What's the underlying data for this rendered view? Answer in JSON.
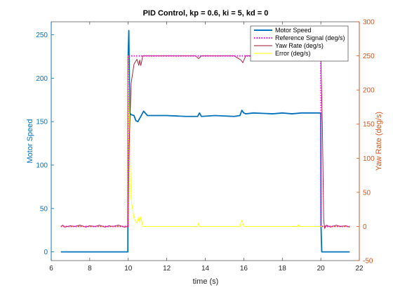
{
  "chart_data": {
    "type": "line",
    "title": "PID Control, kp = 0.6, ki = 5, kd = 0",
    "xlabel": "time (s)",
    "ylabel_left": "Motor Speed",
    "ylabel_right": "Yaw Rate (deg/s)",
    "xlim": [
      6,
      22
    ],
    "ylim_left": [
      -10,
      265
    ],
    "ylim_right": [
      -50,
      300
    ],
    "x_ticks": [
      6,
      8,
      10,
      12,
      14,
      16,
      18,
      20,
      22
    ],
    "y_ticks_left": [
      0,
      50,
      100,
      150,
      200,
      250
    ],
    "y_ticks_right": [
      -50,
      0,
      50,
      100,
      150,
      200,
      250,
      300
    ],
    "grid": false,
    "legend_position": "top-right",
    "colors": {
      "left_axis": "#0072bd",
      "right_axis": "#d95319"
    },
    "series": [
      {
        "name": "Motor Speed",
        "axis": "left",
        "color": "#0072bd",
        "style": "solid",
        "x": [
          6.5,
          9.98,
          9.99,
          10.03,
          10.08,
          10.15,
          10.3,
          10.4,
          10.5,
          10.6,
          10.7,
          10.8,
          11,
          12,
          13,
          13.6,
          13.7,
          13.8,
          14.5,
          15.5,
          15.8,
          15.9,
          16,
          16.1,
          16.5,
          17.5,
          18,
          18.5,
          19,
          19.5,
          20,
          20.01,
          20.05,
          21.5
        ],
        "y": [
          0,
          0,
          222,
          255,
          160,
          158,
          157,
          151,
          150,
          154,
          158,
          162,
          157,
          157,
          156,
          156,
          160,
          156,
          157,
          156,
          157,
          163,
          160,
          159,
          160,
          159,
          160,
          159,
          160,
          160,
          160,
          30,
          0,
          0
        ]
      },
      {
        "name": "Reference Signal (deg/s)",
        "axis": "right",
        "color": "#ff00ff",
        "style": "dotted",
        "x": [
          6.5,
          9.99,
          10.0,
          20.0,
          20.01,
          21.5
        ],
        "y": [
          0,
          0,
          250,
          250,
          0,
          0
        ]
      },
      {
        "name": "Yaw Rate (deg/s)",
        "axis": "right",
        "color": "#a2142f",
        "style": "solid",
        "x": [
          6.5,
          6.6,
          6.7,
          7.0,
          7.2,
          7.5,
          7.8,
          8.0,
          8.3,
          8.5,
          8.8,
          9.0,
          9.2,
          9.5,
          9.8,
          10.0,
          10.05,
          10.15,
          10.3,
          10.45,
          10.55,
          10.6,
          10.65,
          10.7,
          10.75,
          11.0,
          12.0,
          13.5,
          13.65,
          13.8,
          15.5,
          15.85,
          15.95,
          16.1,
          17,
          18,
          19,
          19.9,
          20.0,
          20.08,
          20.15,
          20.2,
          20.3,
          20.5,
          20.8,
          21.0,
          21.3,
          21.5
        ],
        "y": [
          0,
          2,
          -1,
          1,
          0,
          2,
          -1,
          1,
          0,
          2,
          -1,
          1,
          0,
          2,
          -1,
          0,
          120,
          210,
          238,
          245,
          236,
          244,
          236,
          242,
          250,
          250,
          250,
          250,
          246,
          250,
          250,
          244,
          240,
          250,
          250,
          250,
          250,
          250,
          250,
          150,
          10,
          -3,
          2,
          -1,
          2,
          0,
          1,
          -1
        ]
      },
      {
        "name": "Error (deg/s)",
        "axis": "right",
        "color": "#ffff00",
        "style": "solid",
        "x": [
          6.5,
          9.99,
          10.0,
          10.08,
          10.15,
          10.3,
          10.45,
          10.55,
          10.6,
          10.65,
          10.7,
          10.75,
          11.0,
          13.6,
          13.65,
          13.7,
          15.8,
          15.9,
          16.0,
          18.8,
          18.85,
          18.9,
          19.9,
          20.0,
          20.01,
          21.5
        ],
        "y": [
          0,
          0,
          250,
          130,
          40,
          12,
          5,
          14,
          6,
          14,
          8,
          0,
          0,
          0,
          5,
          0,
          0,
          9,
          0,
          0,
          3,
          0,
          0,
          0,
          0,
          0
        ]
      }
    ]
  }
}
